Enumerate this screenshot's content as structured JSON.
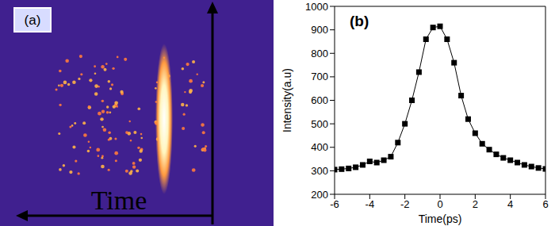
{
  "image_panel": {
    "label": "(a)",
    "axis_label": "Time"
  },
  "chart_data": {
    "type": "line",
    "annotation": "(b)",
    "xlabel": "Time(ps)",
    "ylabel": "Intensity(a.u)",
    "x": [
      -6,
      -5.6,
      -5.2,
      -4.8,
      -4.4,
      -4,
      -3.6,
      -3.2,
      -2.8,
      -2.4,
      -2,
      -1.6,
      -1.2,
      -0.8,
      -0.4,
      0,
      0.4,
      0.8,
      1.2,
      1.6,
      2,
      2.4,
      2.8,
      3.2,
      3.6,
      4,
      4.4,
      4.8,
      5.2,
      5.6,
      6
    ],
    "values": [
      305,
      307,
      310,
      315,
      325,
      340,
      335,
      345,
      360,
      420,
      500,
      600,
      720,
      860,
      910,
      915,
      860,
      760,
      620,
      520,
      460,
      415,
      390,
      370,
      355,
      345,
      335,
      325,
      318,
      312,
      308
    ],
    "color": "#000000",
    "marker": "square",
    "line_style": "solid",
    "xlim": [
      -6,
      6
    ],
    "xticks": [
      -6,
      -4,
      -2,
      0,
      2,
      4,
      6
    ],
    "ylim": [
      200,
      1000
    ],
    "yticks": [
      200,
      300,
      400,
      500,
      600,
      700,
      800,
      900,
      1000
    ],
    "grid": false
  }
}
